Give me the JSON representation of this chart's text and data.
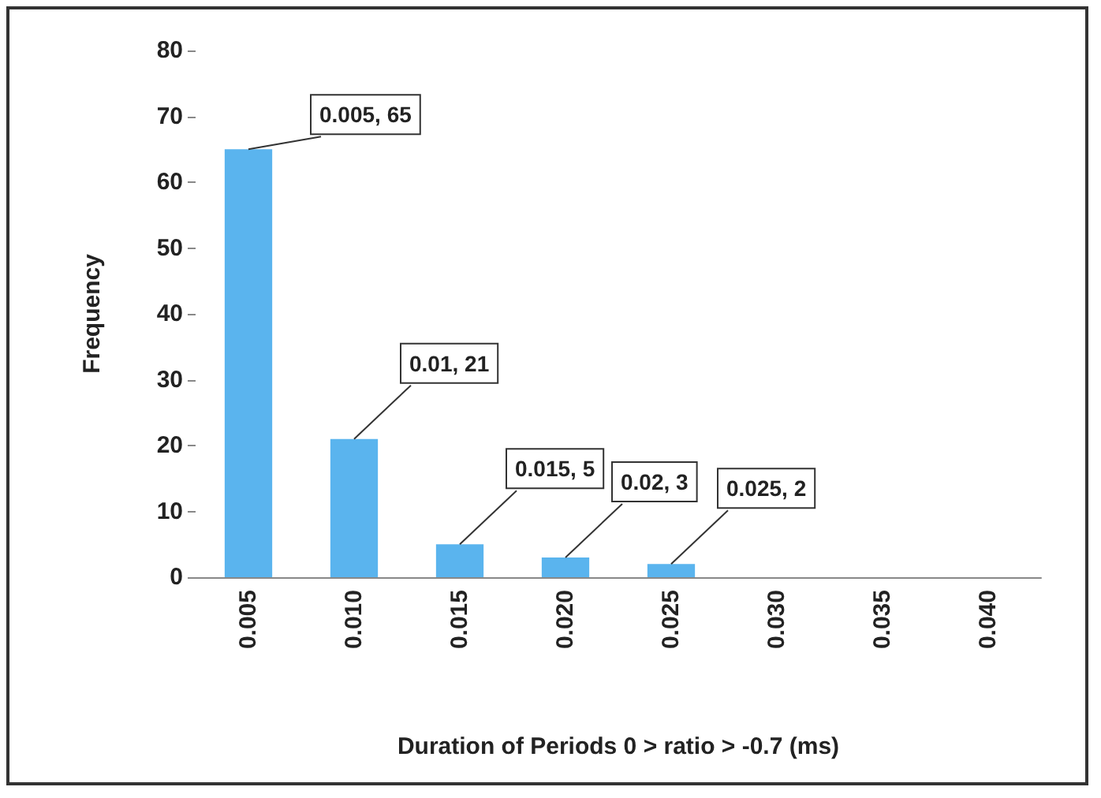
{
  "chart_data": {
    "type": "bar",
    "xlabel": "Duration of Periods 0 > ratio > -0.7 (ms)",
    "ylabel": "Frequency",
    "categories": [
      "0.005",
      "0.010",
      "0.015",
      "0.020",
      "0.025",
      "0.030",
      "0.035",
      "0.040"
    ],
    "values": [
      65,
      21,
      5,
      3,
      2,
      0,
      0,
      0
    ],
    "color": "#5ab4ee",
    "ylim": [
      0,
      80
    ],
    "yticks": [
      0,
      10,
      20,
      30,
      40,
      50,
      60,
      70,
      80
    ],
    "grid": false,
    "annotations": [
      {
        "text": "0.005, 65",
        "x": "0.005",
        "y": 65
      },
      {
        "text": "0.01, 21",
        "x": "0.010",
        "y": 21
      },
      {
        "text": "0.015, 5",
        "x": "0.015",
        "y": 5
      },
      {
        "text": "0.02, 3",
        "x": "0.020",
        "y": 3
      },
      {
        "text": "0.025, 2",
        "x": "0.025",
        "y": 2
      }
    ]
  }
}
